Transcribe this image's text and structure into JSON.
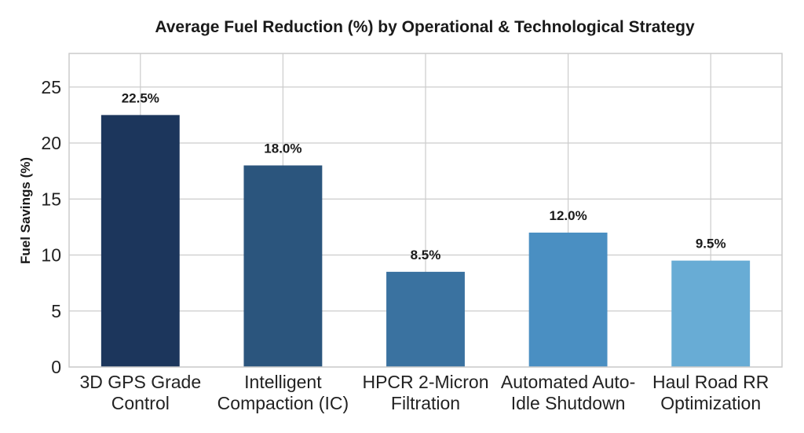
{
  "chart_data": {
    "type": "bar",
    "title": "Average Fuel Reduction (%) by Operational & Technological Strategy",
    "xlabel": "",
    "ylabel": "Fuel Savings (%)",
    "categories": [
      [
        "3D GPS Grade",
        "Control"
      ],
      [
        "Intelligent",
        "Compaction (IC)"
      ],
      [
        "HPCR 2-Micron",
        "Filtration"
      ],
      [
        "Automated Auto-",
        "Idle Shutdown"
      ],
      [
        "Haul Road RR",
        "Optimization"
      ]
    ],
    "values": [
      22.5,
      18.0,
      8.5,
      12.0,
      9.5
    ],
    "data_labels": [
      "22.5%",
      "18.0%",
      "8.5%",
      "12.0%",
      "9.5%"
    ],
    "colors": [
      "#1c365c",
      "#2b557d",
      "#3a72a0",
      "#4a8fc2",
      "#68acd5"
    ],
    "ylim": [
      0,
      28
    ],
    "yticks": [
      0,
      5,
      10,
      15,
      20,
      25
    ],
    "grid": true
  }
}
